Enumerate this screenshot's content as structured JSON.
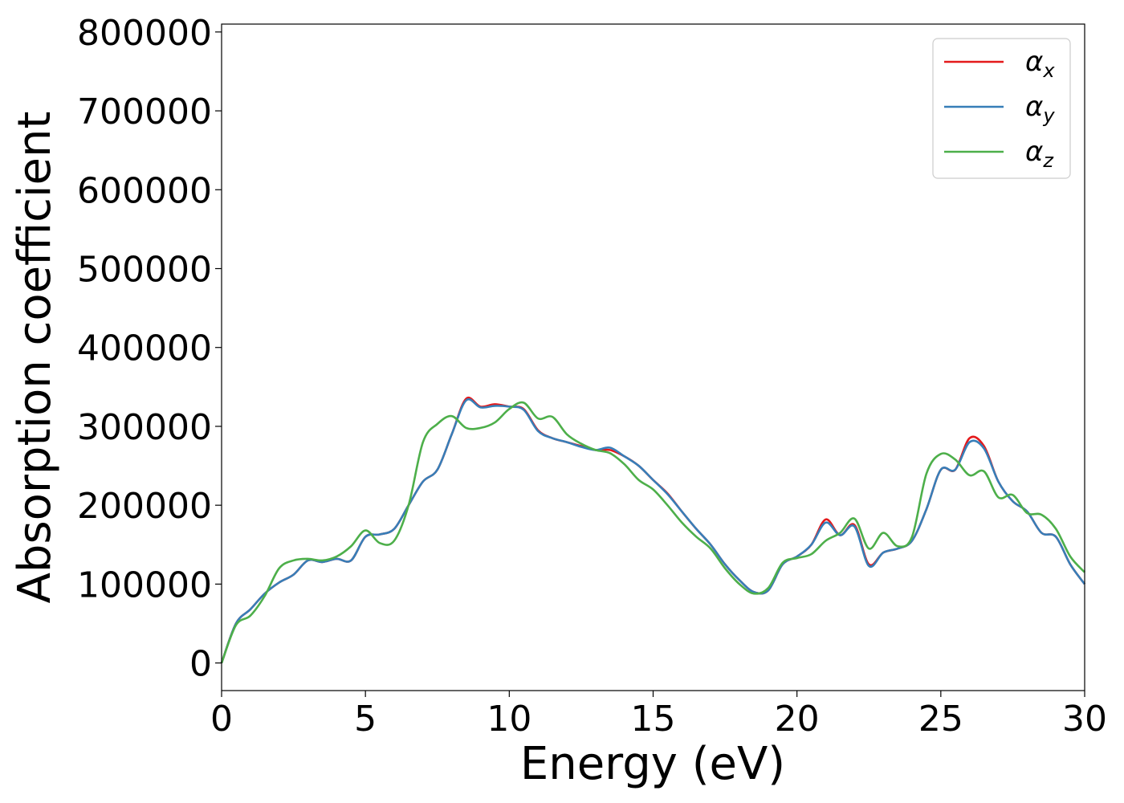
{
  "chart_data": {
    "type": "line",
    "xlabel": "Energy (eV)",
    "ylabel": "Absorption coefficient",
    "xlim": [
      0,
      30
    ],
    "ylim": [
      -35000,
      810000
    ],
    "xticks": [
      0,
      5,
      10,
      15,
      20,
      25,
      30
    ],
    "yticks": [
      0,
      100000,
      200000,
      300000,
      400000,
      500000,
      600000,
      700000,
      800000
    ],
    "xtick_labels": [
      "0",
      "5",
      "10",
      "15",
      "20",
      "25",
      "30"
    ],
    "ytick_labels": [
      "0",
      "100000",
      "200000",
      "300000",
      "400000",
      "500000",
      "600000",
      "700000",
      "800000"
    ],
    "grid": false,
    "legend_position": "top-right",
    "x": [
      0,
      0.5,
      1,
      1.5,
      2,
      2.5,
      3,
      3.5,
      4,
      4.5,
      5,
      5.5,
      6,
      6.5,
      7,
      7.5,
      8,
      8.5,
      9,
      9.5,
      10,
      10.5,
      11,
      11.5,
      12,
      12.5,
      13,
      13.5,
      14,
      14.5,
      15,
      15.5,
      16,
      16.5,
      17,
      17.5,
      18,
      18.5,
      19,
      19.5,
      20,
      20.5,
      21,
      21.5,
      22,
      22.5,
      23,
      23.5,
      24,
      24.5,
      25,
      25.5,
      26,
      26.5,
      27,
      27.5,
      28,
      28.5,
      29,
      29.5,
      30
    ],
    "series": [
      {
        "name": "α",
        "subscript": "x",
        "color": "#e41a1c",
        "values": [
          0,
          50000,
          68000,
          88000,
          102000,
          112000,
          130000,
          128000,
          132000,
          130000,
          160000,
          163000,
          170000,
          200000,
          230000,
          245000,
          290000,
          335000,
          325000,
          328000,
          325000,
          322000,
          295000,
          285000,
          280000,
          275000,
          270000,
          270000,
          262000,
          250000,
          232000,
          215000,
          192000,
          170000,
          150000,
          125000,
          105000,
          90000,
          92000,
          125000,
          135000,
          150000,
          182000,
          162000,
          175000,
          125000,
          140000,
          145000,
          155000,
          195000,
          245000,
          245000,
          285000,
          275000,
          230000,
          205000,
          192000,
          165000,
          160000,
          125000,
          100000
        ]
      },
      {
        "name": "α",
        "subscript": "y",
        "color": "#377eb8",
        "values": [
          0,
          50000,
          68000,
          88000,
          102000,
          112000,
          130000,
          128000,
          132000,
          130000,
          160000,
          163000,
          170000,
          200000,
          230000,
          245000,
          290000,
          333000,
          324000,
          326000,
          325000,
          321000,
          294000,
          285000,
          280000,
          274000,
          270000,
          273000,
          262000,
          250000,
          232000,
          214000,
          192000,
          170000,
          150000,
          125000,
          105000,
          90000,
          92000,
          125000,
          135000,
          150000,
          178000,
          162000,
          173000,
          123000,
          140000,
          145000,
          155000,
          195000,
          245000,
          245000,
          280000,
          272000,
          230000,
          205000,
          192000,
          165000,
          160000,
          125000,
          100000
        ]
      },
      {
        "name": "α",
        "subscript": "z",
        "color": "#4daf4a",
        "values": [
          0,
          48000,
          60000,
          85000,
          120000,
          130000,
          132000,
          130000,
          135000,
          148000,
          168000,
          152000,
          155000,
          200000,
          280000,
          303000,
          313000,
          298000,
          298000,
          305000,
          322000,
          330000,
          310000,
          312000,
          290000,
          278000,
          270000,
          266000,
          252000,
          232000,
          220000,
          200000,
          178000,
          160000,
          145000,
          120000,
          100000,
          88000,
          95000,
          127000,
          133000,
          138000,
          155000,
          165000,
          183000,
          145000,
          165000,
          148000,
          160000,
          240000,
          265000,
          258000,
          238000,
          243000,
          210000,
          213000,
          190000,
          188000,
          170000,
          135000,
          115000
        ]
      }
    ]
  }
}
